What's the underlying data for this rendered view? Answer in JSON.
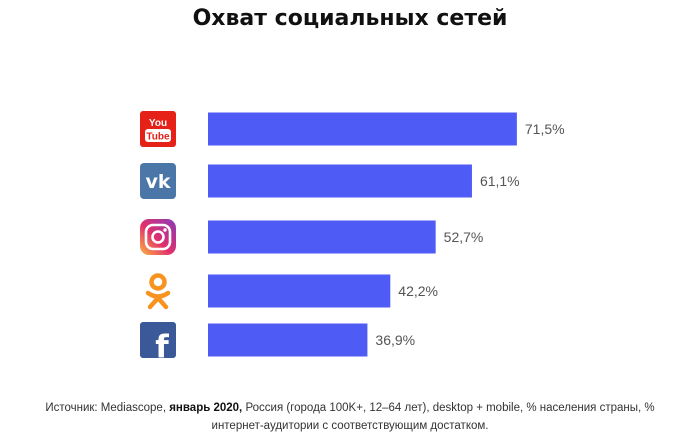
{
  "chart_data": {
    "type": "bar",
    "orientation": "horizontal",
    "title": "Охват социальных сетей",
    "categories": [
      "YouTube",
      "VK",
      "Instagram",
      "Odnoklassniki",
      "Facebook"
    ],
    "values": [
      71.5,
      61.1,
      52.7,
      42.2,
      36.9
    ],
    "value_labels": [
      "71,5%",
      "61,1%",
      "52,7%",
      "42,2%",
      "36,9%"
    ],
    "bar_color": "#4f5bf5",
    "icons": [
      {
        "name": "youtube-icon",
        "color": "#e62117",
        "text_top": "You",
        "text_bottom": "Tube"
      },
      {
        "name": "vk-icon",
        "color": "#4a76a8",
        "text": "vk"
      },
      {
        "name": "instagram-icon",
        "color": "#d6249f"
      },
      {
        "name": "odnoklassniki-icon",
        "color": "#f7931e"
      },
      {
        "name": "facebook-icon",
        "color": "#3b5998",
        "text": "f"
      }
    ]
  },
  "source": {
    "prefix": "Источник: Mediascope, ",
    "bold": "январь 2020,",
    "suffix": " Россия (города 100K+, 12–64 лет), desktop + mobile, % населения страны, % интернет-аудитории с соответствующим достатком."
  }
}
